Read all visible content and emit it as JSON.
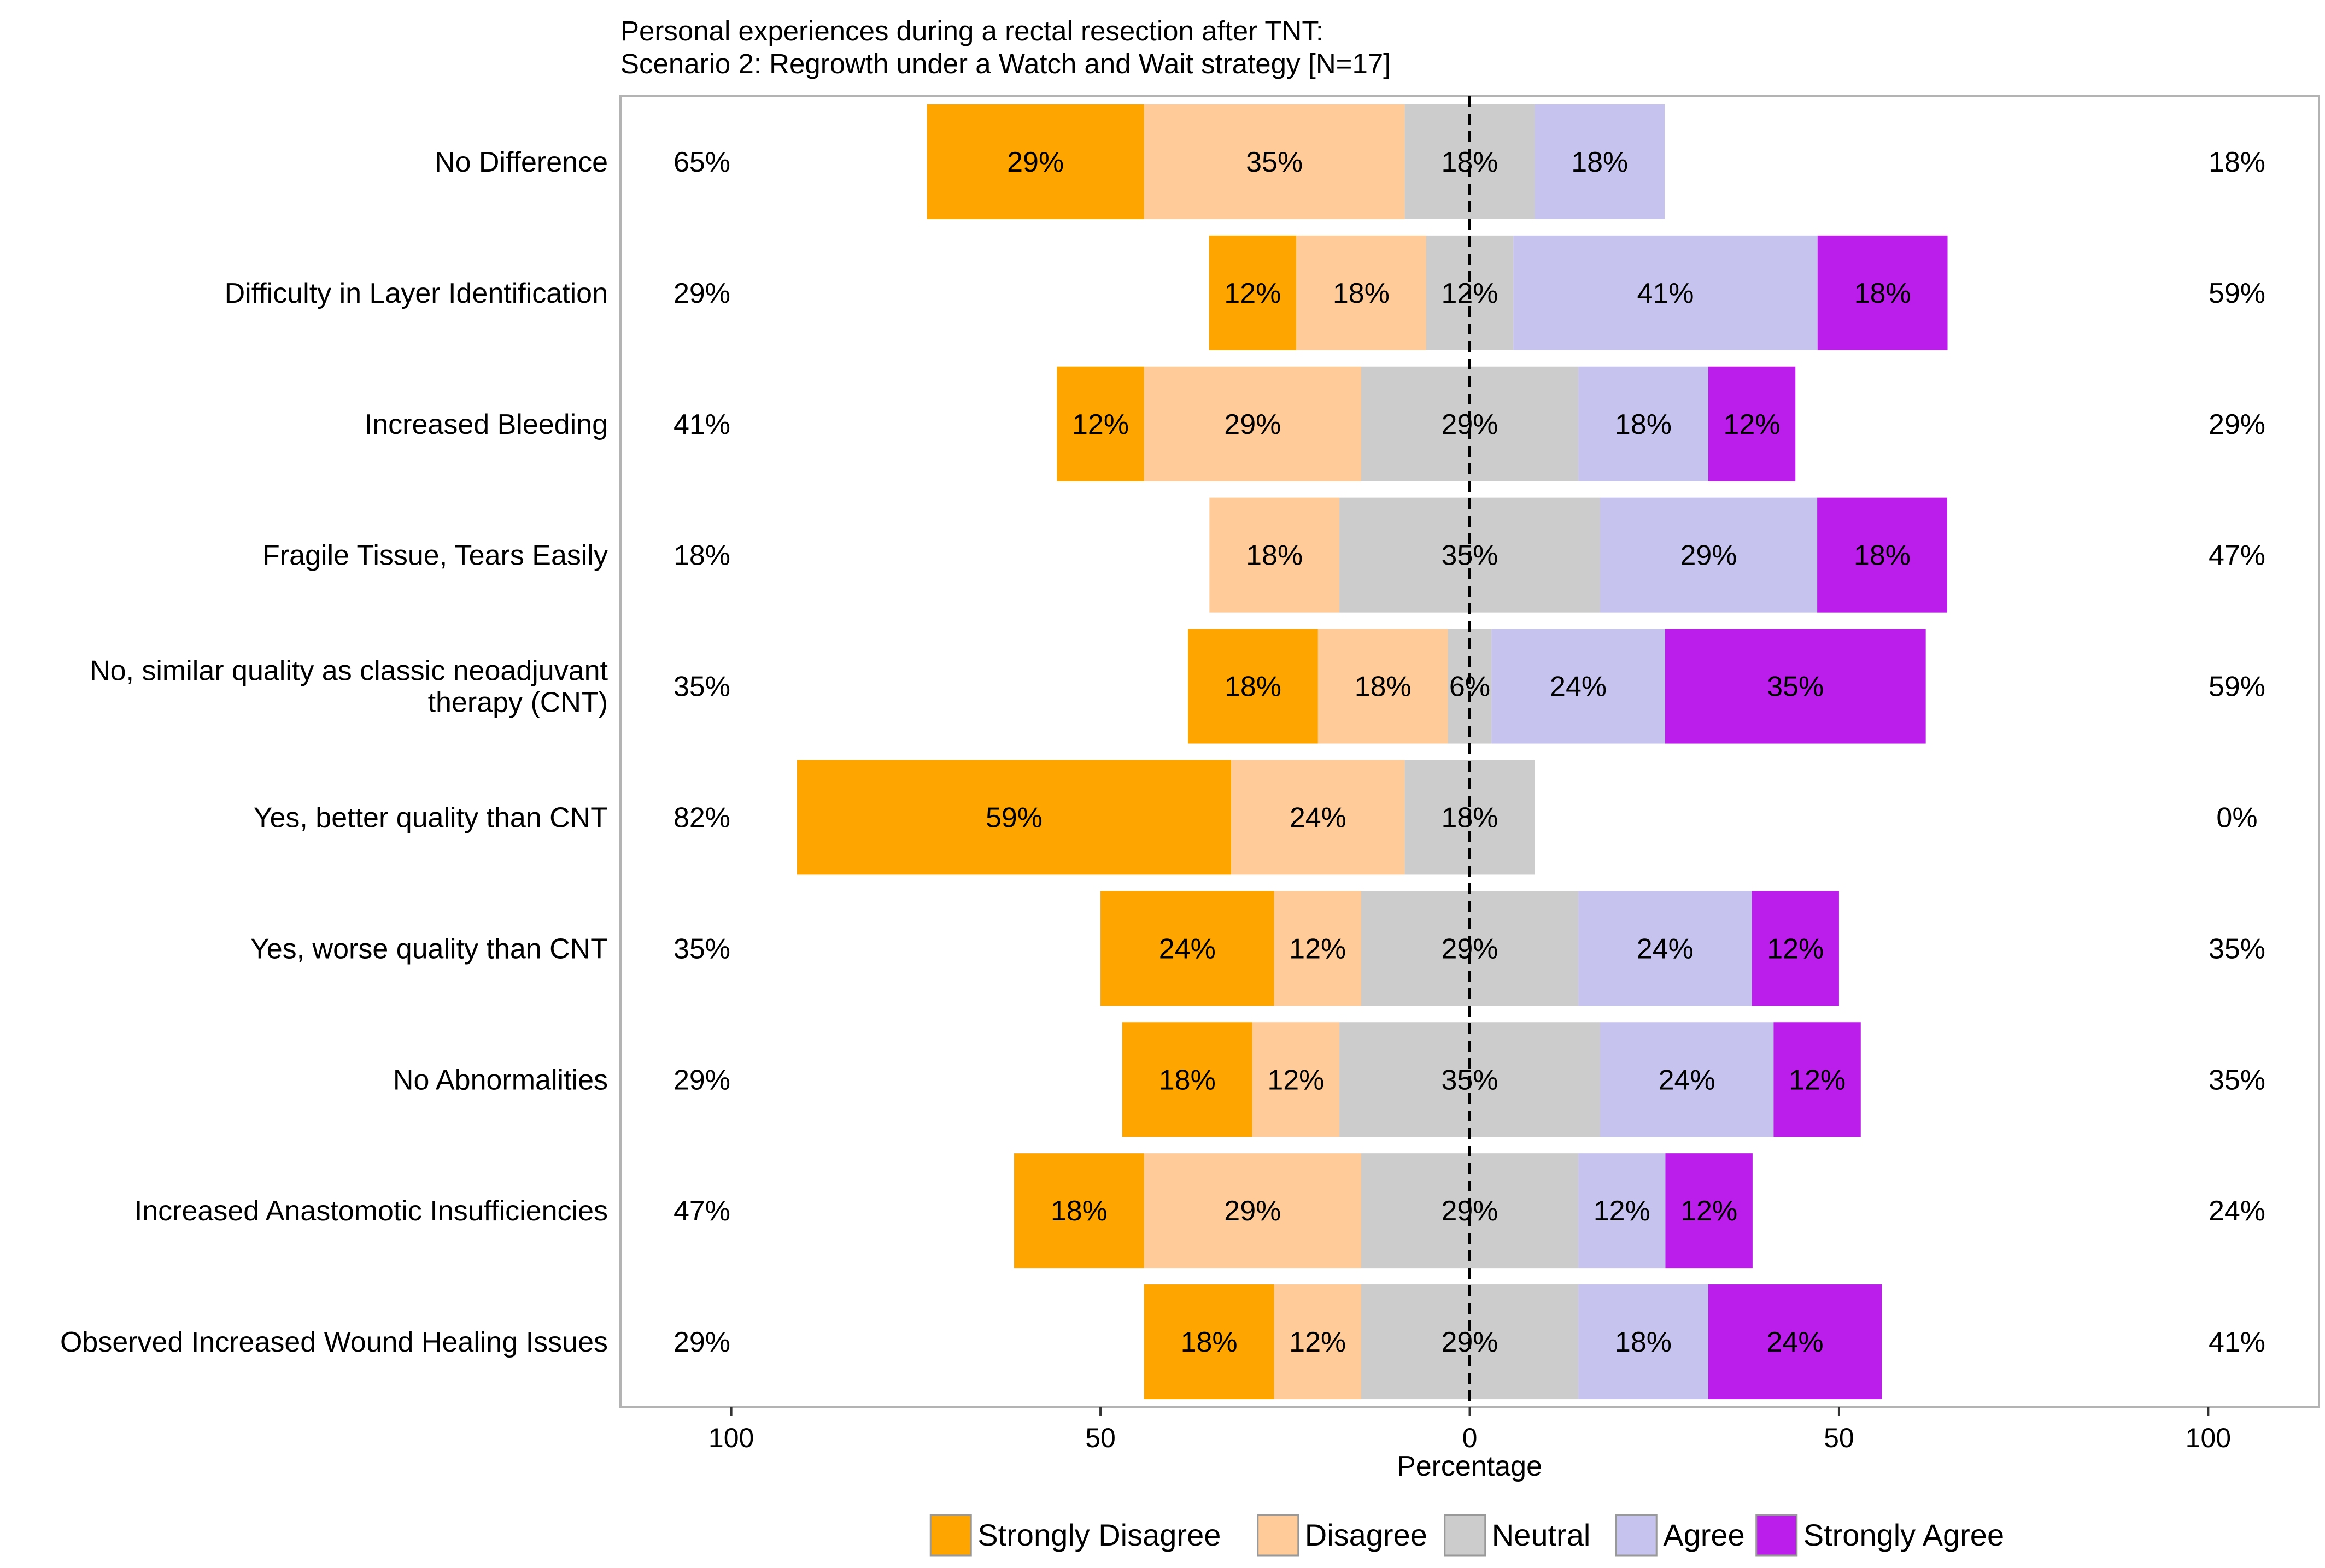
{
  "chart_data": {
    "type": "bar",
    "orientation": "horizontal-diverging-stacked",
    "title": "Personal experiences during a rectal resection after TNT:",
    "subtitle": "Scenario 2: Regrowth under a Watch and Wait strategy [N=17]",
    "xlabel": "Percentage",
    "ylabel": "",
    "xlim": [
      -115,
      115
    ],
    "x_ticks": [
      -100,
      -50,
      0,
      50,
      100
    ],
    "x_tick_labels": [
      "100",
      "50",
      "0",
      "50",
      "100"
    ],
    "legend_position": "bottom",
    "categories": [
      "No Difference",
      "Difficulty in Layer Identification",
      "Increased Bleeding",
      "Fragile Tissue, Tears Easily",
      "No, similar quality as classic neoadjuvant therapy (CNT)",
      "Yes, better quality than CNT",
      "Yes, worse quality than CNT",
      "No Abnormalities",
      "Increased Anastomotic Insufficiencies",
      "Observed Increased Wound Healing Issues"
    ],
    "category_lines": [
      [
        "No Difference"
      ],
      [
        "Difficulty in Layer Identification"
      ],
      [
        "Increased Bleeding"
      ],
      [
        "Fragile Tissue, Tears Easily"
      ],
      [
        "No, similar quality as classic neoadjuvant",
        "therapy (CNT)"
      ],
      [
        "Yes, better quality than CNT"
      ],
      [
        "Yes, worse quality than CNT"
      ],
      [
        "No Abnormalities"
      ],
      [
        "Increased Anastomotic Insufficiencies"
      ],
      [
        "Observed Increased Wound Healing Issues"
      ]
    ],
    "series": [
      {
        "name": "Strongly Disagree",
        "color": "#FFA500",
        "values": [
          29.4,
          11.8,
          11.8,
          0,
          17.6,
          58.8,
          23.5,
          17.6,
          17.6,
          17.6
        ],
        "labels": [
          "29%",
          "12%",
          "12%",
          "",
          "18%",
          "59%",
          "24%",
          "18%",
          "18%",
          "18%"
        ]
      },
      {
        "name": "Disagree",
        "color": "#FFCC99",
        "values": [
          35.3,
          17.6,
          29.4,
          17.6,
          17.6,
          23.5,
          11.8,
          11.8,
          29.4,
          11.8
        ],
        "labels": [
          "35%",
          "18%",
          "29%",
          "18%",
          "18%",
          "24%",
          "12%",
          "12%",
          "29%",
          "12%"
        ]
      },
      {
        "name": "Neutral",
        "color": "#CCCCCC",
        "values": [
          17.6,
          11.8,
          29.4,
          35.3,
          5.9,
          17.6,
          29.4,
          35.3,
          29.4,
          29.4
        ],
        "labels": [
          "18%",
          "12%",
          "29%",
          "35%",
          "6%",
          "18%",
          "29%",
          "35%",
          "29%",
          "29%"
        ]
      },
      {
        "name": "Agree",
        "color": "#C6C4EE",
        "values": [
          17.6,
          41.2,
          17.6,
          29.4,
          23.5,
          0,
          23.5,
          23.5,
          11.8,
          17.6
        ],
        "labels": [
          "18%",
          "41%",
          "18%",
          "29%",
          "24%",
          "",
          "24%",
          "24%",
          "12%",
          "18%"
        ]
      },
      {
        "name": "Strongly Agree",
        "color": "#BB1DEB",
        "values": [
          0,
          17.6,
          11.8,
          17.6,
          35.3,
          0,
          11.8,
          11.8,
          11.8,
          23.5
        ],
        "labels": [
          "",
          "18%",
          "12%",
          "18%",
          "35%",
          "",
          "12%",
          "12%",
          "12%",
          "24%"
        ]
      }
    ],
    "left_totals": [
      "65%",
      "29%",
      "41%",
      "18%",
      "35%",
      "82%",
      "35%",
      "29%",
      "47%",
      "29%"
    ],
    "right_totals": [
      "18%",
      "59%",
      "29%",
      "47%",
      "59%",
      "0%",
      "35%",
      "35%",
      "24%",
      "41%"
    ]
  }
}
